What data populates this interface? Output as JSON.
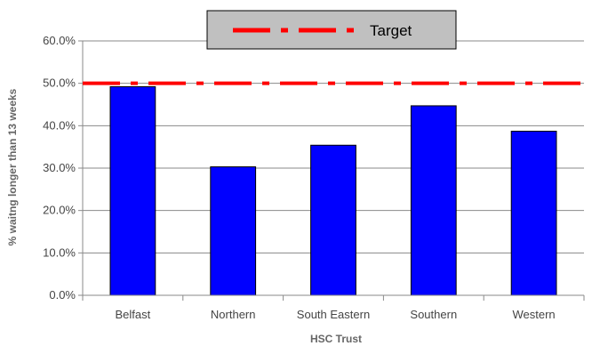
{
  "chart_data": {
    "type": "bar",
    "title": "",
    "xlabel": "HSC Trust",
    "ylabel": "% waitng longer than 13 weeks",
    "categories": [
      "Belfast",
      "Northern",
      "South Eastern",
      "Southern",
      "Western"
    ],
    "values": [
      0.492,
      0.303,
      0.354,
      0.447,
      0.387
    ],
    "ylim": [
      0,
      0.6
    ],
    "yticks": [
      "0.0%",
      "10.0%",
      "20.0%",
      "30.0%",
      "40.0%",
      "50.0%",
      "60.0%"
    ],
    "grid": "horizontal",
    "legend_position": "top-center",
    "reference_line": {
      "name": "Target",
      "value": 0.5,
      "style": "dash-dot",
      "color": "#ff0000"
    },
    "colors": {
      "bar": "#0000ff",
      "bar_stroke": "#000000",
      "target": "#ff0000",
      "legend_bg": "#c0c0c0"
    }
  }
}
